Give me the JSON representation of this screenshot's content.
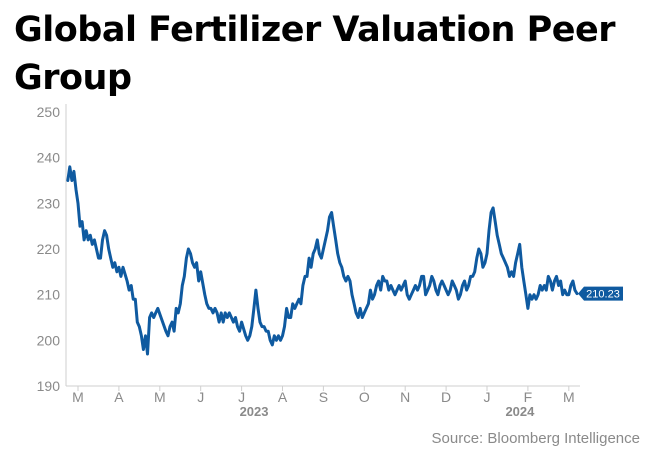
{
  "chart_data": {
    "type": "line",
    "title": "Global Fertilizer Valuation Peer Group",
    "source": "Source: Bloomberg Intelligence",
    "ylim": [
      190,
      250
    ],
    "yticks": [
      190,
      200,
      210,
      220,
      230,
      240,
      250
    ],
    "grid": false,
    "xticks": [
      {
        "label": "M",
        "month": 0
      },
      {
        "label": "A",
        "month": 1
      },
      {
        "label": "M",
        "month": 2
      },
      {
        "label": "J",
        "month": 3
      },
      {
        "label": "J",
        "month": 4
      },
      {
        "label": "A",
        "month": 5
      },
      {
        "label": "S",
        "month": 6
      },
      {
        "label": "O",
        "month": 7
      },
      {
        "label": "N",
        "month": 8
      },
      {
        "label": "D",
        "month": 9
      },
      {
        "label": "J",
        "month": 10
      },
      {
        "label": "F",
        "month": 11
      },
      {
        "label": "M",
        "month": 12
      }
    ],
    "years": [
      {
        "label": "2023",
        "month": 4.5
      },
      {
        "label": "2024",
        "month": 11.0
      }
    ],
    "last_value_label": "210.23",
    "color": "#0f5aa0",
    "series": [
      {
        "points": [
          [
            -0.25,
            235
          ],
          [
            -0.2,
            238
          ],
          [
            -0.15,
            235
          ],
          [
            -0.1,
            237
          ],
          [
            -0.05,
            233
          ],
          [
            0.0,
            230
          ],
          [
            0.05,
            225
          ],
          [
            0.1,
            226
          ],
          [
            0.15,
            222
          ],
          [
            0.2,
            224
          ],
          [
            0.25,
            222
          ],
          [
            0.3,
            223
          ],
          [
            0.35,
            221
          ],
          [
            0.4,
            222
          ],
          [
            0.5,
            218
          ],
          [
            0.55,
            218
          ],
          [
            0.6,
            222
          ],
          [
            0.65,
            224
          ],
          [
            0.7,
            223
          ],
          [
            0.75,
            220
          ],
          [
            0.8,
            218
          ],
          [
            0.85,
            216
          ],
          [
            0.9,
            217
          ],
          [
            0.95,
            215
          ],
          [
            1.0,
            216
          ],
          [
            1.05,
            214
          ],
          [
            1.1,
            216
          ],
          [
            1.2,
            213
          ],
          [
            1.25,
            211
          ],
          [
            1.3,
            212
          ],
          [
            1.35,
            209
          ],
          [
            1.4,
            209
          ],
          [
            1.45,
            204
          ],
          [
            1.5,
            203
          ],
          [
            1.55,
            201
          ],
          [
            1.6,
            198
          ],
          [
            1.65,
            201
          ],
          [
            1.7,
            197
          ],
          [
            1.75,
            205
          ],
          [
            1.8,
            206
          ],
          [
            1.85,
            205
          ],
          [
            1.9,
            206
          ],
          [
            1.95,
            207
          ],
          [
            2.15,
            202
          ],
          [
            2.2,
            201
          ],
          [
            2.25,
            203
          ],
          [
            2.3,
            204
          ],
          [
            2.35,
            202
          ],
          [
            2.4,
            207
          ],
          [
            2.45,
            206
          ],
          [
            2.5,
            208
          ],
          [
            2.55,
            212
          ],
          [
            2.6,
            214
          ],
          [
            2.65,
            218
          ],
          [
            2.7,
            220
          ],
          [
            2.75,
            219
          ],
          [
            2.8,
            217
          ],
          [
            2.85,
            216
          ],
          [
            2.9,
            217
          ],
          [
            2.95,
            213
          ],
          [
            3.0,
            215
          ],
          [
            3.1,
            210
          ],
          [
            3.15,
            208
          ],
          [
            3.2,
            207
          ],
          [
            3.25,
            207
          ],
          [
            3.3,
            206
          ],
          [
            3.35,
            207
          ],
          [
            3.4,
            206
          ],
          [
            3.45,
            204
          ],
          [
            3.5,
            206
          ],
          [
            3.55,
            204
          ],
          [
            3.6,
            206
          ],
          [
            3.65,
            205
          ],
          [
            3.7,
            206
          ],
          [
            3.75,
            205
          ],
          [
            3.8,
            204
          ],
          [
            3.85,
            205
          ],
          [
            3.9,
            203
          ],
          [
            3.95,
            202
          ],
          [
            4.0,
            204
          ],
          [
            4.1,
            201
          ],
          [
            4.15,
            200
          ],
          [
            4.2,
            201
          ],
          [
            4.25,
            203
          ],
          [
            4.3,
            207
          ],
          [
            4.35,
            211
          ],
          [
            4.4,
            207
          ],
          [
            4.45,
            204
          ],
          [
            4.5,
            203
          ],
          [
            4.55,
            203
          ],
          [
            4.6,
            202
          ],
          [
            4.65,
            202
          ],
          [
            4.7,
            200
          ],
          [
            4.75,
            199
          ],
          [
            4.8,
            201
          ],
          [
            4.85,
            200
          ],
          [
            4.9,
            201
          ],
          [
            4.95,
            200
          ],
          [
            5.0,
            201
          ],
          [
            5.05,
            203
          ],
          [
            5.1,
            207
          ],
          [
            5.15,
            205
          ],
          [
            5.2,
            205
          ],
          [
            5.25,
            208
          ],
          [
            5.3,
            207
          ],
          [
            5.35,
            208
          ],
          [
            5.4,
            209
          ],
          [
            5.45,
            208
          ],
          [
            5.5,
            212
          ],
          [
            5.55,
            214
          ],
          [
            5.6,
            214
          ],
          [
            5.65,
            218
          ],
          [
            5.7,
            216
          ],
          [
            5.75,
            219
          ],
          [
            5.8,
            220
          ],
          [
            5.85,
            222
          ],
          [
            5.9,
            219
          ],
          [
            5.95,
            218
          ],
          [
            6.1,
            224
          ],
          [
            6.15,
            227
          ],
          [
            6.2,
            228
          ],
          [
            6.25,
            225
          ],
          [
            6.3,
            222
          ],
          [
            6.35,
            219
          ],
          [
            6.4,
            217
          ],
          [
            6.45,
            216
          ],
          [
            6.5,
            214
          ],
          [
            6.55,
            213
          ],
          [
            6.6,
            214
          ],
          [
            6.65,
            213
          ],
          [
            6.7,
            210
          ],
          [
            6.75,
            208
          ],
          [
            6.8,
            206
          ],
          [
            6.85,
            205
          ],
          [
            6.9,
            207
          ],
          [
            6.95,
            205
          ],
          [
            7.0,
            206
          ],
          [
            7.05,
            207
          ],
          [
            7.1,
            208
          ],
          [
            7.15,
            211
          ],
          [
            7.2,
            209
          ],
          [
            7.25,
            210
          ],
          [
            7.3,
            212
          ],
          [
            7.35,
            213
          ],
          [
            7.4,
            211
          ],
          [
            7.45,
            214
          ],
          [
            7.5,
            213
          ],
          [
            7.55,
            213
          ],
          [
            7.6,
            211
          ],
          [
            7.65,
            212
          ],
          [
            7.7,
            211
          ],
          [
            7.75,
            210
          ],
          [
            7.8,
            211
          ],
          [
            7.85,
            212
          ],
          [
            7.9,
            211
          ],
          [
            8.0,
            213
          ],
          [
            8.05,
            210
          ],
          [
            8.1,
            209
          ],
          [
            8.15,
            210
          ],
          [
            8.2,
            211
          ],
          [
            8.25,
            212
          ],
          [
            8.3,
            211
          ],
          [
            8.35,
            212
          ],
          [
            8.4,
            214
          ],
          [
            8.45,
            214
          ],
          [
            8.5,
            210
          ],
          [
            8.55,
            211
          ],
          [
            8.6,
            212
          ],
          [
            8.65,
            214
          ],
          [
            8.7,
            213
          ],
          [
            8.75,
            211
          ],
          [
            8.8,
            210
          ],
          [
            8.85,
            212
          ],
          [
            8.9,
            213
          ],
          [
            8.95,
            212
          ],
          [
            9.0,
            211
          ],
          [
            9.05,
            210
          ],
          [
            9.1,
            211
          ],
          [
            9.15,
            213
          ],
          [
            9.2,
            212
          ],
          [
            9.25,
            211
          ],
          [
            9.3,
            209
          ],
          [
            9.35,
            210
          ],
          [
            9.4,
            212
          ],
          [
            9.45,
            213
          ],
          [
            9.5,
            211
          ],
          [
            9.55,
            212
          ],
          [
            9.6,
            214
          ],
          [
            9.65,
            214
          ],
          [
            9.7,
            215
          ],
          [
            9.75,
            218
          ],
          [
            9.8,
            220
          ],
          [
            9.85,
            219
          ],
          [
            9.9,
            216
          ],
          [
            9.95,
            217
          ],
          [
            10.0,
            219
          ],
          [
            10.05,
            224
          ],
          [
            10.1,
            228
          ],
          [
            10.15,
            229
          ],
          [
            10.2,
            226
          ],
          [
            10.25,
            223
          ],
          [
            10.3,
            221
          ],
          [
            10.35,
            219
          ],
          [
            10.4,
            218
          ],
          [
            10.5,
            216
          ],
          [
            10.55,
            214
          ],
          [
            10.6,
            215
          ],
          [
            10.65,
            214
          ],
          [
            10.7,
            217
          ],
          [
            10.75,
            219
          ],
          [
            10.8,
            221
          ],
          [
            10.85,
            216
          ],
          [
            10.9,
            213
          ],
          [
            10.95,
            210
          ],
          [
            11.0,
            207
          ],
          [
            11.05,
            210
          ],
          [
            11.1,
            209
          ],
          [
            11.15,
            210
          ],
          [
            11.2,
            209
          ],
          [
            11.25,
            210
          ],
          [
            11.3,
            212
          ],
          [
            11.35,
            211
          ],
          [
            11.4,
            212
          ],
          [
            11.45,
            211
          ],
          [
            11.5,
            214
          ],
          [
            11.55,
            213
          ],
          [
            11.6,
            211
          ],
          [
            11.65,
            213
          ],
          [
            11.7,
            214
          ],
          [
            11.75,
            212
          ],
          [
            11.8,
            213
          ],
          [
            11.85,
            210
          ],
          [
            11.9,
            211
          ],
          [
            11.95,
            210
          ],
          [
            12.0,
            210
          ],
          [
            12.05,
            212
          ],
          [
            12.1,
            213
          ],
          [
            12.15,
            211
          ],
          [
            12.2,
            210.23
          ]
        ]
      }
    ]
  }
}
